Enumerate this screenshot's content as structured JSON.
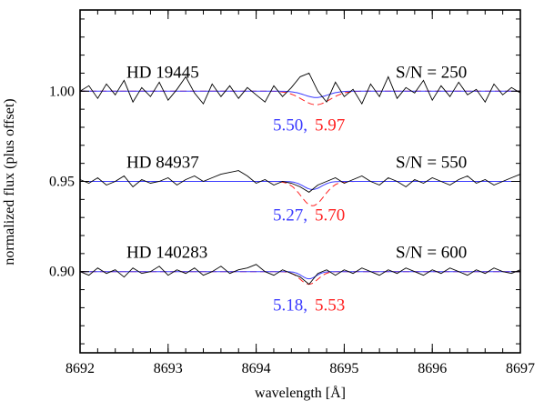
{
  "chart_data": {
    "type": "line",
    "xlabel": "wavelength [Å]",
    "ylabel": "normalized flux (plus offset)",
    "xlim": [
      8692,
      8697
    ],
    "ylim": [
      0.855,
      1.045
    ],
    "xticks": [
      8692,
      8693,
      8694,
      8695,
      8696,
      8697
    ],
    "xtick_labels": [
      "8692",
      "8693",
      "8694",
      "8695",
      "8696",
      "8697"
    ],
    "yticks": [
      0.9,
      0.95,
      1.0
    ],
    "ytick_labels": [
      "0.90",
      "0.95",
      "1.00"
    ],
    "grid": false,
    "colors": {
      "observed": "#000000",
      "model_blue": "#3a3aff",
      "model_red": "#ff2020"
    },
    "panels": [
      {
        "star": "HD 19445",
        "snr_label": "S/N = 250",
        "baseline": 1.0,
        "label_blue": "5.50,",
        "label_red": "5.97",
        "line_center": 8694.68,
        "blue_depth": 0.0035,
        "red_depth": 0.0075,
        "blue_sigma": 0.13,
        "red_sigma": 0.16,
        "observed": {
          "x": [
            8692.0,
            8692.1,
            8692.2,
            8692.3,
            8692.4,
            8692.5,
            8692.6,
            8692.7,
            8692.8,
            8692.9,
            8693.0,
            8693.1,
            8693.2,
            8693.3,
            8693.4,
            8693.5,
            8693.6,
            8693.7,
            8693.8,
            8693.9,
            8694.0,
            8694.1,
            8694.2,
            8694.3,
            8694.4,
            8694.5,
            8694.6,
            8694.7,
            8694.8,
            8694.9,
            8695.0,
            8695.1,
            8695.2,
            8695.3,
            8695.4,
            8695.5,
            8695.6,
            8695.7,
            8695.8,
            8695.9,
            8696.0,
            8696.1,
            8696.2,
            8696.3,
            8696.4,
            8696.5,
            8696.6,
            8696.7,
            8696.8,
            8696.9,
            8697.0
          ],
          "y": [
            1.0,
            1.003,
            0.996,
            1.004,
            0.998,
            1.006,
            0.994,
            1.002,
            0.997,
            1.005,
            0.995,
            1.001,
            1.008,
            0.999,
            0.993,
            1.004,
            0.997,
            1.003,
            0.996,
            1.002,
            0.998,
            0.994,
            1.003,
            0.997,
            1.002,
            1.008,
            1.01,
            1.0,
            0.994,
            1.005,
            0.997,
            1.001,
            0.993,
            1.004,
            0.997,
            1.008,
            0.996,
            1.002,
            0.999,
            1.006,
            0.995,
            1.003,
            0.997,
            1.005,
            0.998,
            1.001,
            0.994,
            1.004,
            0.998,
            1.002,
            0.999
          ]
        }
      },
      {
        "star": "HD 84937",
        "snr_label": "S/N = 550",
        "baseline": 0.95,
        "label_blue": "5.27,",
        "label_red": "5.70",
        "line_center": 8694.64,
        "blue_depth": 0.0045,
        "red_depth": 0.0135,
        "blue_sigma": 0.1,
        "red_sigma": 0.13,
        "observed": {
          "x": [
            8692.0,
            8692.1,
            8692.2,
            8692.3,
            8692.4,
            8692.5,
            8692.6,
            8692.7,
            8692.8,
            8692.9,
            8693.0,
            8693.1,
            8693.2,
            8693.3,
            8693.4,
            8693.5,
            8693.6,
            8693.7,
            8693.8,
            8693.9,
            8694.0,
            8694.1,
            8694.2,
            8694.3,
            8694.4,
            8694.5,
            8694.6,
            8694.7,
            8694.8,
            8694.9,
            8695.0,
            8695.1,
            8695.2,
            8695.3,
            8695.4,
            8695.5,
            8695.6,
            8695.7,
            8695.8,
            8695.9,
            8696.0,
            8696.1,
            8696.2,
            8696.3,
            8696.4,
            8696.5,
            8696.6,
            8696.7,
            8696.8,
            8696.9,
            8697.0
          ],
          "y": [
            0.951,
            0.949,
            0.952,
            0.948,
            0.95,
            0.953,
            0.947,
            0.951,
            0.949,
            0.95,
            0.952,
            0.948,
            0.951,
            0.953,
            0.95,
            0.952,
            0.954,
            0.955,
            0.956,
            0.953,
            0.949,
            0.951,
            0.948,
            0.95,
            0.949,
            0.947,
            0.944,
            0.948,
            0.95,
            0.952,
            0.949,
            0.951,
            0.953,
            0.95,
            0.948,
            0.952,
            0.95,
            0.947,
            0.951,
            0.949,
            0.952,
            0.95,
            0.948,
            0.951,
            0.953,
            0.949,
            0.951,
            0.948,
            0.95,
            0.952,
            0.954
          ]
        }
      },
      {
        "star": "HD 140283",
        "snr_label": "S/N = 600",
        "baseline": 0.9,
        "label_blue": "5.18,",
        "label_red": "5.53",
        "line_center": 8694.6,
        "blue_depth": 0.004,
        "red_depth": 0.007,
        "blue_sigma": 0.08,
        "red_sigma": 0.1,
        "observed": {
          "x": [
            8692.0,
            8692.1,
            8692.2,
            8692.3,
            8692.4,
            8692.5,
            8692.6,
            8692.7,
            8692.8,
            8692.9,
            8693.0,
            8693.1,
            8693.2,
            8693.3,
            8693.4,
            8693.5,
            8693.6,
            8693.7,
            8693.8,
            8693.9,
            8694.0,
            8694.1,
            8694.2,
            8694.3,
            8694.4,
            8694.5,
            8694.6,
            8694.7,
            8694.8,
            8694.9,
            8695.0,
            8695.1,
            8695.2,
            8695.3,
            8695.4,
            8695.5,
            8695.6,
            8695.7,
            8695.8,
            8695.9,
            8696.0,
            8696.1,
            8696.2,
            8696.3,
            8696.4,
            8696.5,
            8696.6,
            8696.7,
            8696.8,
            8696.9,
            8697.0
          ],
          "y": [
            0.9,
            0.898,
            0.902,
            0.899,
            0.901,
            0.897,
            0.902,
            0.899,
            0.9,
            0.903,
            0.898,
            0.901,
            0.899,
            0.902,
            0.898,
            0.9,
            0.903,
            0.899,
            0.901,
            0.902,
            0.904,
            0.9,
            0.898,
            0.901,
            0.899,
            0.897,
            0.893,
            0.899,
            0.901,
            0.898,
            0.901,
            0.899,
            0.902,
            0.9,
            0.898,
            0.901,
            0.899,
            0.902,
            0.9,
            0.898,
            0.901,
            0.899,
            0.902,
            0.9,
            0.898,
            0.901,
            0.899,
            0.902,
            0.9,
            0.899,
            0.901
          ]
        }
      }
    ]
  }
}
